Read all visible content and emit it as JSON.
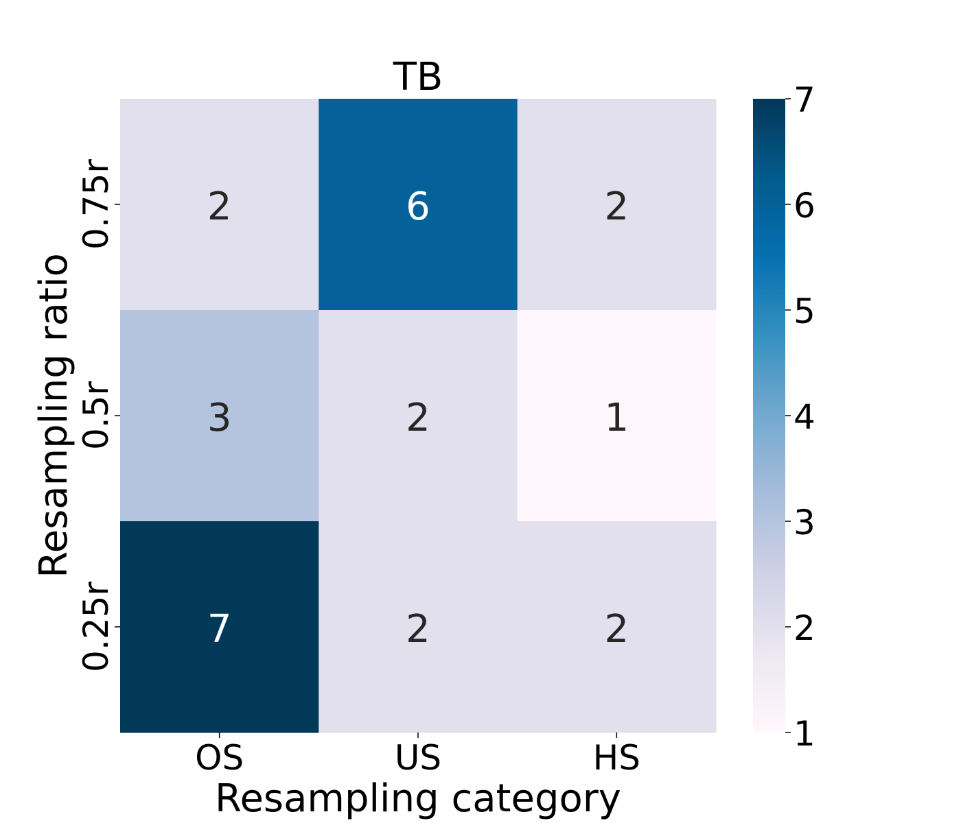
{
  "chart_data": {
    "type": "heatmap",
    "title": "TB",
    "xlabel": "Resampling category",
    "ylabel": "Resampling ratio",
    "x_categories": [
      "OS",
      "US",
      "HS"
    ],
    "y_categories": [
      "0.75r",
      "0.5r",
      "0.25r"
    ],
    "values": [
      [
        2,
        6,
        2
      ],
      [
        3,
        2,
        1
      ],
      [
        7,
        2,
        2
      ]
    ],
    "colorbar": {
      "min": 1,
      "max": 7,
      "ticks": [
        "1",
        "2",
        "3",
        "4",
        "5",
        "6",
        "7"
      ],
      "colormap": "PuBu",
      "stops": [
        "#fff7fb",
        "#ece7f2",
        "#d0d1e6",
        "#a6bddb",
        "#74a9cf",
        "#3690c0",
        "#0570b0",
        "#045a8d",
        "#023858"
      ]
    },
    "annotation_colors": {
      "dark_text": "#262626",
      "light_text": "#ffffff"
    }
  }
}
